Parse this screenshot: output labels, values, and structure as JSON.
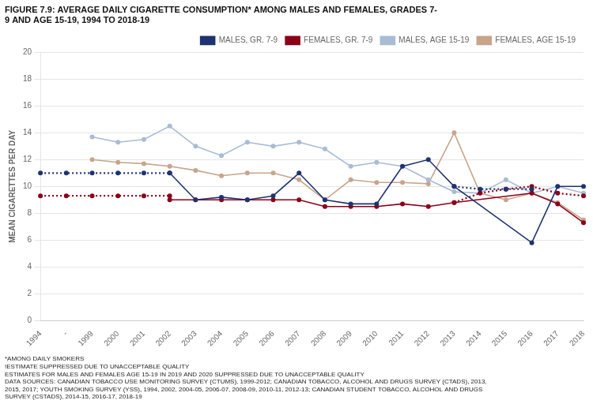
{
  "chart_data": {
    "type": "line",
    "title": "FIGURE 7.9: AVERAGE DAILY CIGARETTE CONSUMPTION* AMONG MALES AND FEMALES, GRADES 7-\n9 AND AGE 15-19, 1994 TO 2018-19",
    "ylabel": "MEAN CIGARETTES PER DAY",
    "footnote": "*AMONG DAILY SMOKERS\n!ESTIMATE SUPPRESSED DUE TO UNACCEPTABLE QUALITY\nESTIMATES FOR MALES AND FEMALES AGE 15-19 IN 2019 AND 2020 SUPPRESSED DUE TO UNACCEPTABLE QUALITY\nDATA SOURCES: CANADIAN TOBACCO USE MONITORING SURVEY (CTUMS), 1999-2012; CANADIAN TOBACCO, ALCOHOL AND DRUGS SURVEY (CTADS), 2013,\n2015, 2017; YOUTH SMOKING SURVEY (YSS), 1994, 2002, 2004-05, 2006-07, 2008-09, 2010-11, 2012-13; CANADIAN STUDENT TOBACCO, ALCOHOL AND DRUGS\nSURVEY (CSTADS), 2014-15, 2016-17, 2018-19",
    "categories": [
      "1994",
      "-",
      "1999",
      "2000",
      "2001",
      "2002",
      "2003",
      "2004",
      "2005",
      "2006",
      "2007",
      "2008",
      "2009",
      "2010",
      "2011",
      "2012",
      "2013",
      "2014",
      "2015",
      "2016",
      "2017",
      "2018"
    ],
    "series": [
      {
        "name": "MALES, GR. 7-9",
        "color": "#1f3370",
        "line_style": "solid",
        "marker": "o",
        "values": [
          null,
          null,
          null,
          null,
          null,
          11.0,
          9.0,
          9.2,
          9.0,
          9.3,
          11.0,
          9.0,
          8.7,
          8.7,
          11.5,
          12.0,
          10.0,
          null,
          null,
          5.8,
          10.0,
          10.0
        ]
      },
      {
        "color": "#1f3370",
        "line_style": "dotted",
        "marker": "o",
        "values": [
          11.0,
          11.0,
          11.0,
          11.0,
          11.0,
          11.0,
          null,
          null,
          null,
          null,
          null,
          null,
          null,
          null,
          null,
          null,
          null,
          null,
          null,
          null,
          null,
          null
        ]
      },
      {
        "color": "#1f3370",
        "line_style": "dotted",
        "marker": "o",
        "values": [
          null,
          null,
          null,
          null,
          null,
          null,
          null,
          null,
          null,
          null,
          null,
          null,
          null,
          null,
          null,
          null,
          10.0,
          9.8,
          9.8,
          9.8,
          null,
          null
        ]
      },
      {
        "name": "FEMALES, GR. 7-9",
        "color": "#8b0018",
        "line_style": "solid",
        "marker": "o",
        "values": [
          null,
          null,
          null,
          null,
          null,
          9.0,
          9.0,
          9.0,
          9.0,
          9.0,
          9.0,
          8.5,
          8.5,
          8.5,
          8.7,
          8.5,
          8.8,
          null,
          null,
          9.5,
          8.7,
          7.3
        ]
      },
      {
        "color": "#8b0018",
        "line_style": "dotted",
        "marker": "o",
        "values": [
          9.3,
          9.3,
          9.3,
          9.3,
          9.3,
          9.3,
          null,
          null,
          null,
          null,
          null,
          null,
          null,
          null,
          null,
          null,
          null,
          null,
          null,
          null,
          null,
          null
        ]
      },
      {
        "color": "#8b0018",
        "line_style": "dotted",
        "marker": "o",
        "values": [
          null,
          null,
          null,
          null,
          null,
          null,
          null,
          null,
          null,
          null,
          null,
          null,
          null,
          null,
          null,
          null,
          8.8,
          9.5,
          9.8,
          10.0,
          9.5,
          9.3
        ]
      },
      {
        "name": "MALES, AGE 15-19",
        "color": "#a8bcd4",
        "line_style": "solid",
        "marker": "o",
        "values": [
          null,
          null,
          13.7,
          13.3,
          13.5,
          14.5,
          13.0,
          12.3,
          13.3,
          13.0,
          13.3,
          12.8,
          11.5,
          11.8,
          11.5,
          10.5,
          9.6,
          9.5,
          10.5,
          9.5,
          10.0,
          9.5
        ]
      },
      {
        "name": "FEMALES, AGE 15-19",
        "color": "#c8a48c",
        "line_style": "solid",
        "marker": "o",
        "values": [
          null,
          null,
          12.0,
          11.8,
          11.7,
          11.5,
          11.2,
          10.8,
          11.0,
          11.0,
          10.5,
          9.0,
          10.5,
          10.3,
          10.3,
          10.2,
          14.0,
          9.5,
          9.0,
          9.5,
          8.8,
          7.5
        ]
      }
    ],
    "ylim": [
      0,
      20
    ],
    "yticks": [
      0,
      2,
      4,
      6,
      8,
      10,
      12,
      14,
      16,
      18,
      20
    ],
    "grid": true,
    "legend": "upper right"
  }
}
